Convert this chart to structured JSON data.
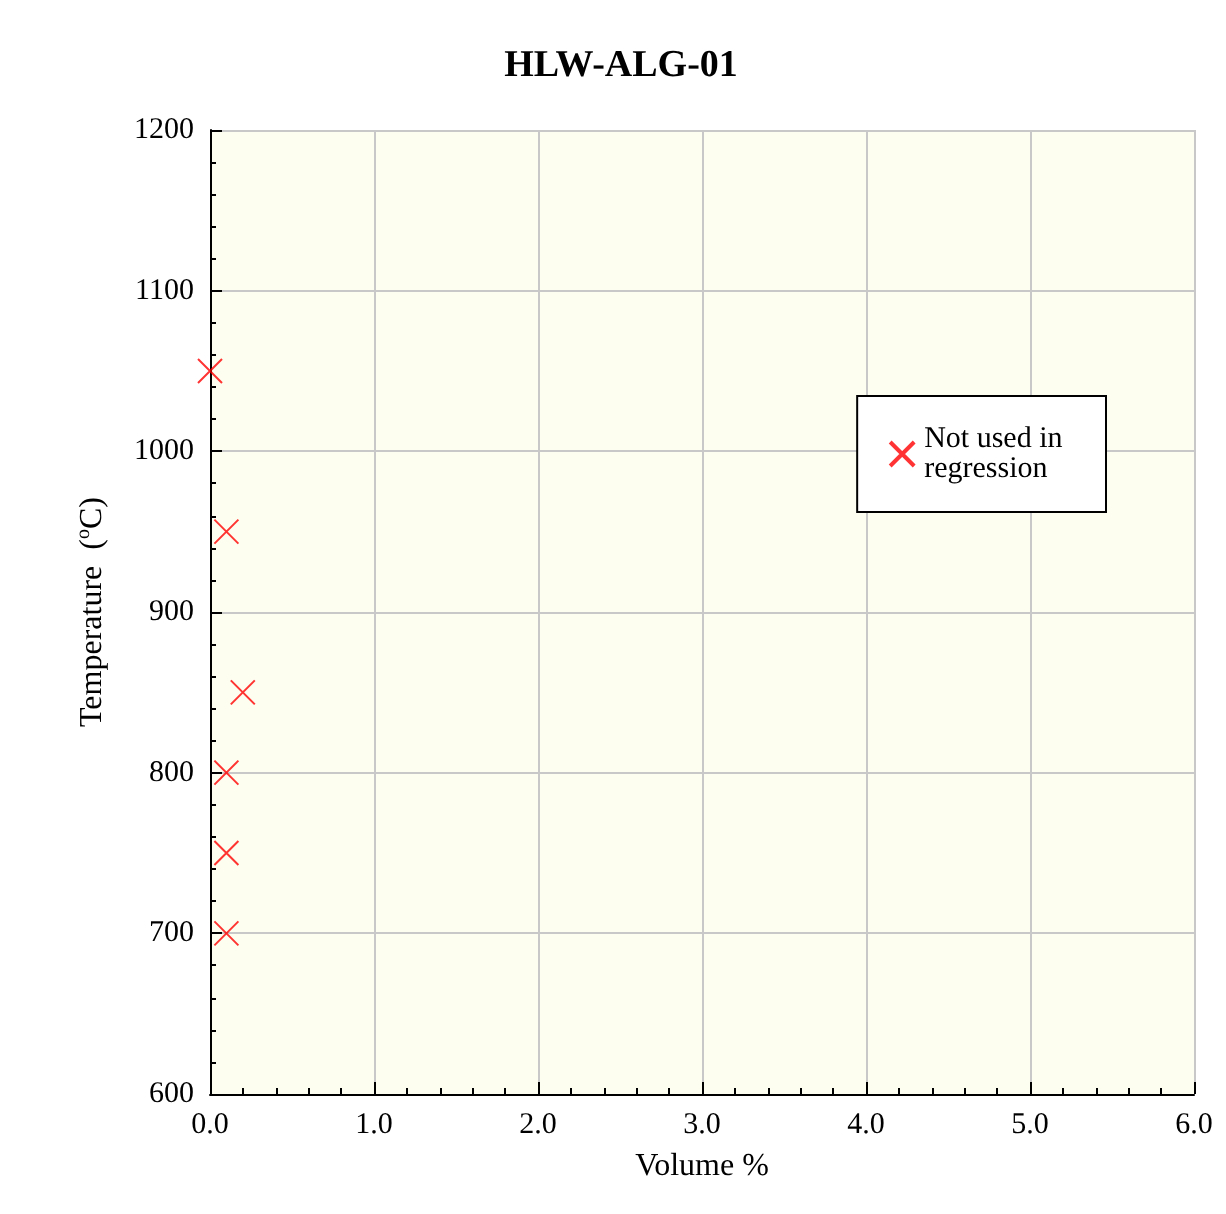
{
  "chart_data": {
    "type": "scatter",
    "title": "HLW-ALG-01",
    "xlabel": "Volume %",
    "ylabel": "Temperature  ($^{o}$C)",
    "x": [
      0.0,
      0.1,
      0.2,
      0.1,
      0.1,
      0.1
    ],
    "series": [
      {
        "name": "Not used in regression",
        "color": "#ff0000",
        "values": [
          1050,
          950,
          850,
          800,
          750,
          700
        ]
      }
    ],
    "xlim": [
      0,
      6
    ],
    "xticks": [
      {
        "value": 0,
        "label": "0.0"
      },
      {
        "value": 1,
        "label": "1.0"
      },
      {
        "value": 2,
        "label": "2.0"
      },
      {
        "value": 3,
        "label": "3.0"
      },
      {
        "value": 4,
        "label": "4.0"
      },
      {
        "value": 5,
        "label": "5.0"
      },
      {
        "value": 6,
        "label": "6.0"
      }
    ],
    "ylim": [
      600,
      1200
    ],
    "yticks": [
      600,
      700,
      800,
      900,
      1000,
      1100,
      1200
    ],
    "grid": true,
    "legend": "right",
    "marker": "cross"
  }
}
